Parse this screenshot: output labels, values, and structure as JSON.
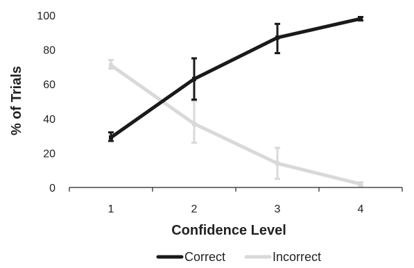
{
  "chart_data": {
    "type": "line",
    "title": "",
    "xlabel": "Confidence Level",
    "ylabel": "% of Trials",
    "x": [
      1,
      2,
      3,
      4
    ],
    "x_tick_labels": [
      "1",
      "2",
      "3",
      "4"
    ],
    "ylim": [
      0,
      100
    ],
    "y_ticks": [
      0,
      20,
      40,
      60,
      80,
      100
    ],
    "y_tick_labels": [
      "0",
      "20",
      "40",
      "60",
      "80",
      "100"
    ],
    "grid": false,
    "legend_position": "bottom",
    "series": [
      {
        "name": "Correct",
        "color": "#1a1a1a",
        "values": [
          29,
          63,
          87,
          98
        ],
        "error_low": [
          27,
          51,
          78,
          97
        ],
        "error_high": [
          32,
          75,
          95,
          99
        ]
      },
      {
        "name": "Incorrect",
        "color": "#d9d9d9",
        "values": [
          71,
          37,
          14,
          2
        ],
        "error_low": [
          69,
          26,
          5,
          1
        ],
        "error_high": [
          74,
          50,
          23,
          3
        ]
      }
    ]
  }
}
